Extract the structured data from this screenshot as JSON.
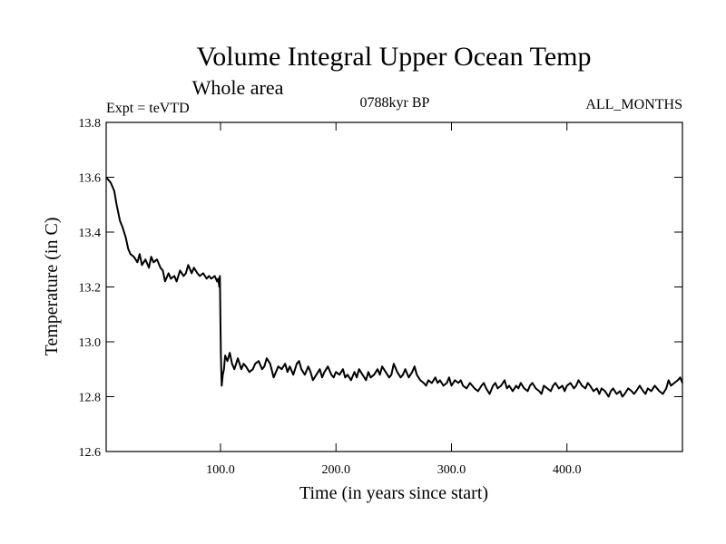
{
  "chart_data": {
    "type": "line",
    "title": "Volume Integral Upper Ocean Temp",
    "subtitle": "Whole area",
    "left_label": "Expt = teVTD",
    "center_label": "0788kyr BP",
    "right_label": "ALL_MONTHS",
    "xlabel": "Time (in years since start)",
    "ylabel": "Temperature (in C)",
    "xlim": [
      1,
      500
    ],
    "ylim": [
      12.6,
      13.8
    ],
    "x_ticks": [
      100,
      200,
      300,
      400
    ],
    "x_tick_labels": [
      "100.0",
      "200.0",
      "300.0",
      "400.0"
    ],
    "y_ticks": [
      12.6,
      12.8,
      13.0,
      13.2,
      13.4,
      13.6,
      13.8
    ],
    "y_tick_labels": [
      "12.6",
      "12.8",
      "13.0",
      "13.2",
      "13.4",
      "13.6",
      "13.8"
    ],
    "grid": false,
    "line_color": "#000000",
    "series": [
      {
        "x": [
          1,
          5,
          8,
          10,
          13,
          15,
          18,
          20,
          22,
          25,
          28,
          30,
          32,
          35,
          38,
          40,
          42,
          45,
          48,
          50,
          52,
          55,
          57,
          60,
          62,
          65,
          68,
          70,
          72,
          75,
          77,
          80,
          82,
          85,
          88,
          90,
          92,
          95,
          97,
          98,
          99,
          99.5,
          100,
          100.3,
          101,
          102,
          103,
          104,
          106,
          108,
          110,
          112,
          115,
          118,
          120,
          122,
          125,
          128,
          130,
          133,
          136,
          138,
          140,
          143,
          146,
          148,
          150,
          153,
          156,
          158,
          160,
          163,
          166,
          168,
          170,
          173,
          176,
          178,
          180,
          183,
          186,
          188,
          190,
          193,
          196,
          198,
          200,
          203,
          206,
          208,
          210,
          213,
          216,
          218,
          220,
          223,
          226,
          228,
          230,
          233,
          236,
          238,
          240,
          243,
          246,
          248,
          250,
          253,
          256,
          258,
          260,
          263,
          266,
          268,
          270,
          273,
          276,
          278,
          280,
          283,
          286,
          288,
          290,
          293,
          296,
          298,
          300,
          303,
          306,
          308,
          310,
          313,
          316,
          318,
          320,
          323,
          326,
          328,
          330,
          333,
          336,
          338,
          340,
          343,
          346,
          348,
          350,
          353,
          356,
          358,
          360,
          363,
          366,
          368,
          370,
          373,
          376,
          378,
          380,
          383,
          386,
          388,
          390,
          393,
          396,
          398,
          400,
          403,
          406,
          408,
          410,
          413,
          416,
          418,
          420,
          423,
          426,
          428,
          430,
          433,
          436,
          438,
          440,
          443,
          446,
          448,
          450,
          453,
          456,
          458,
          460,
          463,
          466,
          468,
          470,
          473,
          476,
          478,
          480,
          483,
          486,
          488,
          490,
          493,
          496,
          498,
          500
        ],
        "y": [
          13.6,
          13.58,
          13.55,
          13.5,
          13.44,
          13.42,
          13.38,
          13.34,
          13.32,
          13.31,
          13.29,
          13.32,
          13.28,
          13.3,
          13.27,
          13.31,
          13.29,
          13.3,
          13.27,
          13.26,
          13.22,
          13.25,
          13.23,
          13.24,
          13.22,
          13.26,
          13.24,
          13.25,
          13.28,
          13.25,
          13.27,
          13.25,
          13.24,
          13.25,
          13.23,
          13.24,
          13.23,
          13.24,
          13.22,
          13.23,
          13.2,
          13.24,
          13.05,
          12.95,
          12.84,
          12.88,
          12.9,
          12.95,
          12.93,
          12.96,
          12.92,
          12.9,
          12.94,
          12.9,
          12.92,
          12.91,
          12.89,
          12.9,
          12.92,
          12.93,
          12.9,
          12.91,
          12.94,
          12.92,
          12.87,
          12.89,
          12.91,
          12.9,
          12.92,
          12.89,
          12.91,
          12.88,
          12.92,
          12.93,
          12.9,
          12.88,
          12.91,
          12.89,
          12.86,
          12.88,
          12.9,
          12.87,
          12.89,
          12.91,
          12.88,
          12.87,
          12.89,
          12.88,
          12.9,
          12.87,
          12.88,
          12.86,
          12.89,
          12.87,
          12.9,
          12.88,
          12.86,
          12.89,
          12.87,
          12.88,
          12.9,
          12.88,
          12.91,
          12.89,
          12.87,
          12.88,
          12.92,
          12.89,
          12.87,
          12.88,
          12.9,
          12.87,
          12.89,
          12.91,
          12.88,
          12.86,
          12.85,
          12.84,
          12.86,
          12.85,
          12.87,
          12.85,
          12.86,
          12.84,
          12.85,
          12.87,
          12.84,
          12.86,
          12.85,
          12.86,
          12.84,
          12.83,
          12.85,
          12.84,
          12.83,
          12.82,
          12.84,
          12.85,
          12.83,
          12.81,
          12.84,
          12.85,
          12.83,
          12.84,
          12.86,
          12.83,
          12.84,
          12.82,
          12.84,
          12.83,
          12.85,
          12.83,
          12.82,
          12.84,
          12.85,
          12.83,
          12.82,
          12.81,
          12.84,
          12.83,
          12.82,
          12.84,
          12.85,
          12.83,
          12.84,
          12.82,
          12.84,
          12.85,
          12.83,
          12.84,
          12.86,
          12.84,
          12.83,
          12.85,
          12.84,
          12.82,
          12.83,
          12.81,
          12.83,
          12.82,
          12.8,
          12.82,
          12.83,
          12.81,
          12.82,
          12.8,
          12.81,
          12.83,
          12.82,
          12.81,
          12.82,
          12.84,
          12.82,
          12.81,
          12.83,
          12.82,
          12.84,
          12.83,
          12.82,
          12.81,
          12.83,
          12.86,
          12.84,
          12.85,
          12.86,
          12.87,
          12.85
        ]
      }
    ]
  }
}
